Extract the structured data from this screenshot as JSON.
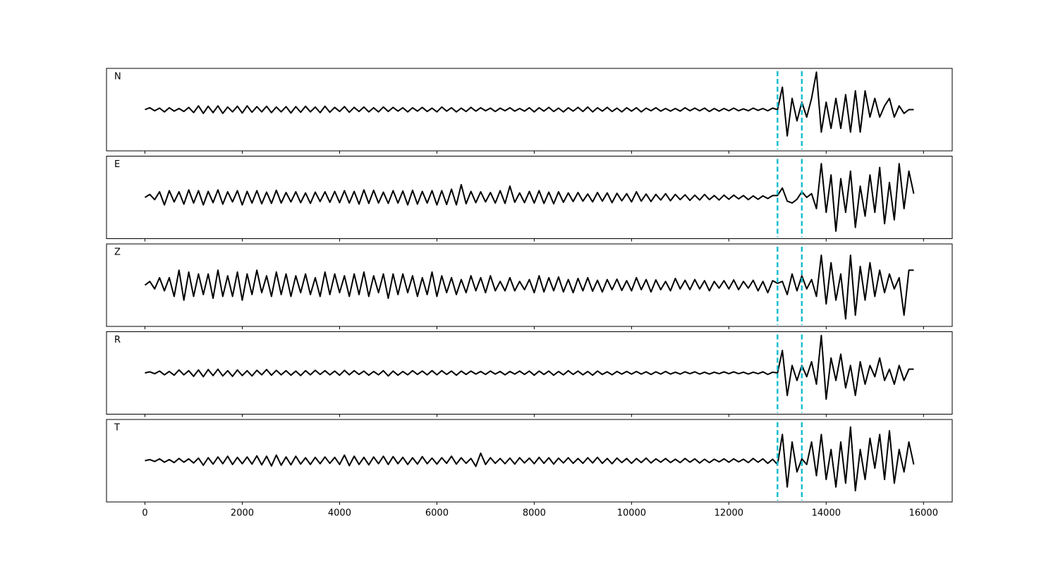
{
  "chart_data": {
    "type": "line",
    "x": [
      0,
      100,
      200,
      300,
      400,
      500,
      600,
      700,
      800,
      900,
      1000,
      1100,
      1200,
      1300,
      1400,
      1500,
      1600,
      1700,
      1800,
      1900,
      2000,
      2100,
      2200,
      2300,
      2400,
      2500,
      2600,
      2700,
      2800,
      2900,
      3000,
      3100,
      3200,
      3300,
      3400,
      3500,
      3600,
      3700,
      3800,
      3900,
      4000,
      4100,
      4200,
      4300,
      4400,
      4500,
      4600,
      4700,
      4800,
      4900,
      5000,
      5100,
      5200,
      5300,
      5400,
      5500,
      5600,
      5700,
      5800,
      5900,
      6000,
      6100,
      6200,
      6300,
      6400,
      6500,
      6600,
      6700,
      6800,
      6900,
      7000,
      7100,
      7200,
      7300,
      7400,
      7500,
      7600,
      7700,
      7800,
      7900,
      8000,
      8100,
      8200,
      8300,
      8400,
      8500,
      8600,
      8700,
      8800,
      8900,
      9000,
      9100,
      9200,
      9300,
      9400,
      9500,
      9600,
      9700,
      9800,
      9900,
      10000,
      10100,
      10200,
      10300,
      10400,
      10500,
      10600,
      10700,
      10800,
      10900,
      11000,
      11100,
      11200,
      11300,
      11400,
      11500,
      11600,
      11700,
      11800,
      11900,
      12000,
      12100,
      12200,
      12300,
      12400,
      12500,
      12600,
      12700,
      12800,
      12900,
      13000,
      13100,
      13200,
      13300,
      13400,
      13500,
      13600,
      13700,
      13800,
      13900,
      14000,
      14100,
      14200,
      14300,
      14400,
      14500,
      14600,
      14700,
      14800,
      14900,
      15000,
      15100,
      15200,
      15300,
      15400,
      15500,
      15600,
      15700,
      15800
    ],
    "series": [
      {
        "name": "N",
        "color": "#000000",
        "values": [
          0,
          0.5,
          -0.3,
          0.4,
          -0.6,
          0.5,
          -0.4,
          0.3,
          -0.5,
          0.6,
          -0.8,
          1,
          -1,
          0.9,
          -0.8,
          1,
          -1,
          0.7,
          -0.6,
          0.9,
          -0.9,
          1,
          -0.7,
          0.8,
          -0.6,
          0.9,
          -0.8,
          0.7,
          -0.6,
          0.8,
          -0.9,
          0.8,
          -0.7,
          0.9,
          -0.6,
          0.7,
          -0.8,
          0.9,
          -0.7,
          0.6,
          -0.5,
          0.8,
          -0.7,
          0.6,
          -0.5,
          0.7,
          -0.6,
          0.5,
          -0.6,
          0.7,
          -0.5,
          0.6,
          -0.4,
          0.5,
          -0.6,
          0.5,
          -0.4,
          0.6,
          -0.5,
          0.4,
          -0.6,
          0.7,
          -0.4,
          0.5,
          -0.6,
          0.4,
          -0.5,
          0.6,
          -0.4,
          0.5,
          -0.3,
          0.4,
          -0.5,
          0.4,
          -0.3,
          0.5,
          -0.4,
          0.3,
          -0.4,
          0.5,
          -0.6,
          0.5,
          -0.4,
          0.6,
          -0.5,
          0.4,
          -0.6,
          0.5,
          -0.4,
          0.6,
          -0.5,
          0.7,
          -0.6,
          0.5,
          -0.4,
          0.6,
          -0.5,
          0.4,
          -0.6,
          0.5,
          -0.4,
          0.5,
          -0.6,
          0.4,
          -0.3,
          0.5,
          -0.4,
          0.3,
          -0.4,
          0.3,
          -0.4,
          0.5,
          -0.3,
          0.4,
          -0.3,
          0.4,
          -0.5,
          0.3,
          -0.4,
          0.3,
          -0.3,
          0.4,
          -0.3,
          0.2,
          -0.3,
          0.4,
          -0.2,
          0.3,
          -0.3,
          0.4,
          0,
          6,
          -7,
          3,
          -3,
          2,
          -2,
          3,
          10,
          -6,
          2,
          -5,
          3,
          -5,
          4,
          -6,
          5,
          -6,
          5,
          -2,
          3,
          -2,
          1,
          3,
          -2,
          1,
          -1,
          0,
          0
        ]
      },
      {
        "name": "E",
        "color": "#000000",
        "values": [
          0,
          0.8,
          -0.6,
          1.5,
          -2,
          1.8,
          -1.2,
          1.5,
          -1.8,
          2,
          -1.5,
          1.8,
          -2,
          1.6,
          -1.4,
          2,
          -1.8,
          1.5,
          -1.2,
          1.8,
          -2,
          1.6,
          -1.5,
          1.8,
          -1.7,
          1.4,
          -1.6,
          1.9,
          -1.5,
          1.3,
          -1.2,
          1.5,
          -1.4,
          1.2,
          -1.6,
          1.4,
          -1.1,
          1.5,
          -1.3,
          1.6,
          -1.4,
          1.8,
          -1.5,
          1.6,
          -1.8,
          2,
          -1.6,
          1.9,
          -1.5,
          1.4,
          -1.6,
          1.8,
          -1.5,
          1.7,
          -2,
          1.9,
          -1.8,
          1.6,
          -1.5,
          1.8,
          -2,
          1.8,
          -1.9,
          2.2,
          -2,
          3.4,
          -1.7,
          1.6,
          -1.4,
          1.5,
          -1.2,
          1.3,
          -1.5,
          1.8,
          -1.6,
          3,
          -1.3,
          1.2,
          -1.4,
          1.6,
          -1.5,
          1.8,
          -1.6,
          1.4,
          -1.7,
          1.5,
          -1.3,
          1.2,
          -1.1,
          1.3,
          -1,
          0.9,
          -1.2,
          1.3,
          -1,
          1.2,
          -1.4,
          1.1,
          -0.9,
          1,
          -1.2,
          1.5,
          -1,
          0.9,
          -1.1,
          0.8,
          -0.7,
          1,
          -0.9,
          0.8,
          -0.6,
          0.7,
          -0.8,
          0.6,
          -0.7,
          0.8,
          -0.6,
          0.5,
          -0.7,
          0.6,
          -0.5,
          0.6,
          -0.4,
          0.5,
          -0.6,
          0.4,
          -0.5,
          0.4,
          -0.3,
          0.5,
          0.5,
          2.5,
          -1,
          -1.5,
          -0.5,
          1.5,
          0,
          1,
          -3,
          9,
          -4,
          6,
          -9,
          5,
          -4,
          7,
          -8,
          3,
          -5,
          6,
          -4,
          8,
          -7,
          4,
          -6,
          9,
          -3,
          7,
          1
        ]
      },
      {
        "name": "Z",
        "color": "#000000",
        "values": [
          0,
          1,
          -1,
          2,
          -1.5,
          2,
          -3,
          4,
          -4,
          3.5,
          -3,
          3,
          -2.5,
          3,
          -3.5,
          4,
          -3,
          2.5,
          -3,
          3.5,
          -4,
          3,
          -2.5,
          4,
          -2,
          2.5,
          -3,
          3.5,
          -2.5,
          3,
          -3,
          2.5,
          -2,
          3,
          -2.5,
          2,
          -3,
          3.5,
          -2.5,
          3,
          -2,
          2.5,
          -3,
          3,
          -2.5,
          3.5,
          -3,
          2.5,
          -2,
          3,
          -3.5,
          3,
          -2.5,
          3,
          -2,
          2.5,
          -3,
          2,
          -2.5,
          3.5,
          -3,
          2.5,
          -2,
          2,
          -2.5,
          1.5,
          -2,
          2.5,
          -1.5,
          2,
          -2,
          2.5,
          -1.5,
          1,
          -1.5,
          2,
          -1.5,
          1,
          -1.2,
          1.5,
          -2,
          2.5,
          -1.8,
          2,
          -1.5,
          2.2,
          -1.8,
          1.5,
          -2,
          1.8,
          -1.5,
          2,
          -1.6,
          1.3,
          -1.8,
          1.5,
          -1.2,
          1.6,
          -1.4,
          1.2,
          -1.5,
          2,
          -1.2,
          1.5,
          -1.8,
          1.4,
          -1.2,
          1,
          -1.5,
          1.8,
          -1,
          1.3,
          -1.2,
          1.5,
          -1,
          1.2,
          -1.5,
          1,
          -0.8,
          1.2,
          -1,
          1.4,
          -1.2,
          1,
          -0.8,
          1.3,
          -1.5,
          1,
          -2,
          1.2,
          0.5,
          1,
          -2.5,
          3,
          -1.5,
          2.5,
          -1,
          1.5,
          -3,
          8,
          -5,
          6,
          -4,
          3,
          -9,
          8,
          -8,
          5,
          -4,
          6,
          -3,
          4,
          -2,
          3,
          -1,
          2,
          -8,
          4,
          4
        ]
      },
      {
        "name": "R",
        "color": "#000000",
        "values": [
          0,
          0.3,
          -0.2,
          0.5,
          -0.5,
          0.4,
          -0.6,
          0.8,
          -0.5,
          0.6,
          -0.9,
          0.8,
          -1,
          0.9,
          -0.7,
          1,
          -0.8,
          0.6,
          -0.9,
          0.8,
          -0.7,
          0.6,
          -0.8,
          0.7,
          -0.5,
          0.9,
          -0.6,
          0.7,
          -0.5,
          0.6,
          -0.6,
          0.5,
          -0.7,
          0.6,
          -0.5,
          0.7,
          -0.4,
          0.6,
          -0.5,
          0.5,
          -0.6,
          0.7,
          -0.5,
          0.6,
          -0.4,
          0.5,
          -0.6,
          0.4,
          -0.5,
          0.6,
          -0.8,
          0.5,
          -0.6,
          0.4,
          -0.5,
          0.6,
          -0.4,
          0.5,
          -0.5,
          0.6,
          -0.5,
          0.6,
          -0.4,
          0.5,
          -0.6,
          0.5,
          -0.4,
          0.5,
          -0.3,
          0.4,
          -0.4,
          0.5,
          -0.3,
          0.4,
          -0.5,
          0.4,
          -0.3,
          0.5,
          -0.4,
          0.5,
          -0.6,
          0.5,
          -0.4,
          0.5,
          -0.6,
          0.4,
          -0.5,
          0.6,
          -0.4,
          0.5,
          -0.5,
          0.4,
          -0.6,
          0.5,
          -0.4,
          0.3,
          -0.5,
          0.4,
          -0.3,
          0.4,
          -0.3,
          0.4,
          -0.3,
          0.3,
          -0.4,
          0.3,
          -0.3,
          0.4,
          -0.3,
          0.2,
          -0.3,
          0.3,
          -0.2,
          0.3,
          -0.3,
          0.2,
          -0.3,
          0.2,
          -0.2,
          0.3,
          -0.2,
          0.3,
          -0.2,
          0.2,
          -0.3,
          0.2,
          -0.2,
          0.3,
          -0.4,
          0.2,
          0,
          6,
          -6,
          2,
          -2,
          2,
          -1,
          3,
          -3,
          10,
          -7,
          4,
          -2,
          5,
          -4,
          2,
          -6,
          3,
          -3,
          2,
          -1,
          4,
          -2,
          1,
          -3,
          2,
          -2,
          1,
          1
        ]
      },
      {
        "name": "T",
        "color": "#000000",
        "values": [
          0,
          0.3,
          -0.2,
          0.5,
          -0.4,
          0.3,
          -0.5,
          0.6,
          -0.4,
          0.5,
          -0.6,
          0.7,
          -1.2,
          0.8,
          -0.9,
          1,
          -0.8,
          1.2,
          -1,
          0.9,
          -0.8,
          1,
          -0.9,
          1.3,
          -1.1,
          1.2,
          -1.4,
          1.5,
          -1.2,
          1,
          -1.1,
          1.2,
          -0.9,
          0.8,
          -1,
          0.9,
          -0.8,
          1,
          -0.7,
          0.9,
          -1,
          1.5,
          -1.3,
          1.2,
          -1,
          0.9,
          -1.1,
          1,
          -0.8,
          1.2,
          -1,
          1.1,
          -0.8,
          0.9,
          -1,
          0.8,
          -0.9,
          1.1,
          -0.8,
          0.7,
          -0.9,
          0.8,
          -0.7,
          1.2,
          -0.9,
          0.8,
          -0.7,
          0.6,
          -1.5,
          2,
          -1,
          0.8,
          -0.7,
          0.6,
          -0.8,
          0.7,
          -0.9,
          0.8,
          -0.6,
          0.7,
          -0.8,
          0.9,
          -0.7,
          0.8,
          -0.9,
          0.7,
          -0.6,
          0.8,
          -0.7,
          0.6,
          -0.7,
          0.8,
          -0.6,
          0.9,
          -0.7,
          0.6,
          -0.8,
          0.7,
          -0.5,
          0.6,
          -0.7,
          0.6,
          -0.5,
          0.7,
          -0.6,
          0.5,
          -0.4,
          0.6,
          -0.5,
          0.4,
          -0.5,
          0.6,
          -0.4,
          0.5,
          -0.6,
          0.4,
          -0.5,
          0.4,
          -0.3,
          0.5,
          -0.4,
          0.5,
          -0.3,
          0.4,
          -0.5,
          0.6,
          -0.4,
          0.5,
          -0.7,
          0.4,
          -1,
          7,
          -7,
          5,
          -3,
          0.5,
          -1,
          5,
          -4,
          7,
          -5,
          3,
          -7,
          5,
          -6,
          9,
          -8,
          3,
          -5,
          6,
          -2,
          7,
          -5,
          8,
          -6,
          3,
          -3,
          5,
          -1
        ]
      }
    ],
    "markers": {
      "x": [
        13000,
        13500
      ],
      "color": "#17becf"
    },
    "xlim": [
      -790,
      16590
    ],
    "xticks": [
      0,
      2000,
      4000,
      6000,
      8000,
      10000,
      12000,
      14000,
      16000
    ],
    "ylim": [
      -11,
      11
    ]
  }
}
